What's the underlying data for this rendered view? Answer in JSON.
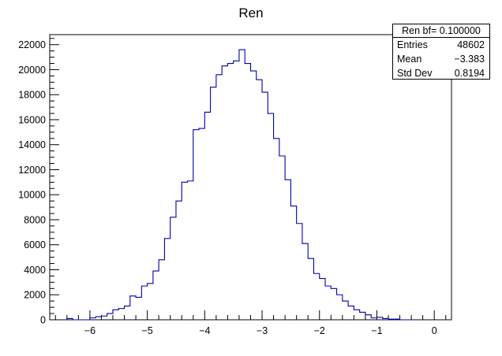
{
  "chart_data": {
    "type": "histogram",
    "title": "Ren",
    "xlabel": "",
    "ylabel": "",
    "xlim": [
      -6.7,
      0.3
    ],
    "ylim": [
      0,
      22800
    ],
    "bin_width": 0.1,
    "x_ticks": [
      -6,
      -5,
      -4,
      -3,
      -2,
      -1,
      0
    ],
    "x_tick_labels": [
      "−6",
      "−5",
      "−4",
      "−3",
      "−2",
      "−1",
      "0"
    ],
    "y_ticks": [
      0,
      2000,
      4000,
      6000,
      8000,
      10000,
      12000,
      14000,
      16000,
      18000,
      20000,
      22000
    ],
    "y_tick_labels": [
      "0",
      "2000",
      "4000",
      "6000",
      "8000",
      "10000",
      "12000",
      "14000",
      "16000",
      "18000",
      "20000",
      "22000"
    ],
    "line_color": "#0000aa",
    "bins_x_low": [
      -6.4,
      -6.3,
      -6.2,
      -6.1,
      -6.0,
      -5.9,
      -5.8,
      -5.7,
      -5.6,
      -5.5,
      -5.4,
      -5.3,
      -5.2,
      -5.1,
      -5.0,
      -4.9,
      -4.8,
      -4.7,
      -4.6,
      -4.5,
      -4.4,
      -4.3,
      -4.2,
      -4.1,
      -4.0,
      -3.9,
      -3.8,
      -3.7,
      -3.6,
      -3.5,
      -3.4,
      -3.3,
      -3.2,
      -3.1,
      -3.0,
      -2.9,
      -2.8,
      -2.7,
      -2.6,
      -2.5,
      -2.4,
      -2.3,
      -2.2,
      -2.1,
      -2.0,
      -1.9,
      -1.8,
      -1.7,
      -1.6,
      -1.5,
      -1.4,
      -1.3,
      -1.2,
      -1.1,
      -1.0,
      -0.9,
      -0.8,
      -0.7,
      -0.6,
      -0.5
    ],
    "values": [
      100,
      0,
      0,
      0,
      150,
      250,
      300,
      500,
      800,
      900,
      1100,
      1900,
      1800,
      2700,
      2900,
      3900,
      4800,
      6500,
      8200,
      9500,
      11000,
      11100,
      15200,
      15300,
      16600,
      18600,
      19600,
      20300,
      20500,
      20700,
      21600,
      20500,
      19900,
      19200,
      18200,
      16500,
      14500,
      13100,
      11200,
      9100,
      7700,
      6100,
      4900,
      3700,
      3300,
      2700,
      2500,
      2000,
      1500,
      1100,
      800,
      600,
      400,
      150,
      200,
      100,
      50,
      50,
      0,
      0
    ],
    "stats": {
      "header": "Ren bf= 0.100000",
      "rows": [
        {
          "label": "Entries",
          "value": "48602"
        },
        {
          "label": "Mean",
          "value": "−3.383"
        },
        {
          "label": "Std Dev",
          "value": "0.8194"
        }
      ]
    }
  }
}
